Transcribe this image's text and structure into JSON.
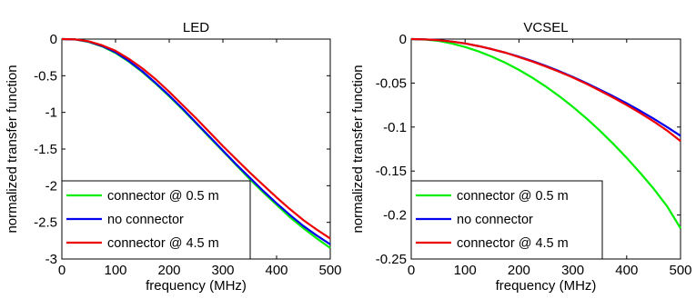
{
  "chart_data": [
    {
      "type": "line",
      "title": "LED",
      "xlabel": "frequency (MHz)",
      "ylabel": "normalized transfer function",
      "xlim": [
        0,
        500
      ],
      "ylim": [
        -3,
        0
      ],
      "xticks": [
        0,
        100,
        200,
        300,
        400,
        500
      ],
      "xtick_labels": [
        "0",
        "100",
        "200",
        "300",
        "400",
        "500"
      ],
      "yticks": [
        0,
        -0.5,
        -1,
        -1.5,
        -2,
        -2.5,
        -3
      ],
      "ytick_labels": [
        "0",
        "-0.5",
        "-1",
        "-1.5",
        "-2",
        "-2.5",
        "-3"
      ],
      "grid": false,
      "legend_position": "bottom-left",
      "x": [
        0,
        25,
        50,
        75,
        100,
        125,
        150,
        175,
        200,
        225,
        250,
        275,
        300,
        325,
        350,
        375,
        400,
        425,
        450,
        475,
        500
      ],
      "series": [
        {
          "name": "connector @ 0.5 m",
          "color": "#00ee00",
          "values": [
            0,
            -0.005,
            -0.04,
            -0.1,
            -0.19,
            -0.31,
            -0.45,
            -0.61,
            -0.78,
            -0.96,
            -1.15,
            -1.34,
            -1.53,
            -1.72,
            -1.91,
            -2.09,
            -2.26,
            -2.43,
            -2.58,
            -2.72,
            -2.85
          ]
        },
        {
          "name": "no connector",
          "color": "#0000ee",
          "values": [
            0,
            -0.005,
            -0.035,
            -0.095,
            -0.18,
            -0.3,
            -0.44,
            -0.6,
            -0.77,
            -0.95,
            -1.14,
            -1.33,
            -1.52,
            -1.71,
            -1.89,
            -2.07,
            -2.24,
            -2.4,
            -2.55,
            -2.68,
            -2.8
          ]
        },
        {
          "name": "connector @ 4.5 m",
          "color": "#ee0000",
          "values": [
            0,
            -0.004,
            -0.03,
            -0.085,
            -0.16,
            -0.27,
            -0.4,
            -0.55,
            -0.72,
            -0.9,
            -1.08,
            -1.27,
            -1.46,
            -1.64,
            -1.82,
            -1.99,
            -2.16,
            -2.32,
            -2.47,
            -2.6,
            -2.72
          ]
        }
      ]
    },
    {
      "type": "line",
      "title": "VCSEL",
      "xlabel": "frequency (MHz)",
      "ylabel": "normalized transfer function",
      "xlim": [
        0,
        500
      ],
      "ylim": [
        -0.25,
        0
      ],
      "xticks": [
        0,
        100,
        200,
        300,
        400,
        500
      ],
      "xtick_labels": [
        "0",
        "100",
        "200",
        "300",
        "400",
        "500"
      ],
      "yticks": [
        0,
        -0.05,
        -0.1,
        -0.15,
        -0.2,
        -0.25
      ],
      "ytick_labels": [
        "0",
        "-0.05",
        "-0.1",
        "-0.15",
        "-0.2",
        "-0.25"
      ],
      "grid": false,
      "legend_position": "bottom-left",
      "x": [
        0,
        25,
        50,
        75,
        100,
        125,
        150,
        175,
        200,
        225,
        250,
        275,
        300,
        325,
        350,
        375,
        400,
        425,
        450,
        475,
        500
      ],
      "series": [
        {
          "name": "connector @ 0.5 m",
          "color": "#00ee00",
          "values": [
            0,
            -0.0005,
            -0.002,
            -0.005,
            -0.009,
            -0.014,
            -0.02,
            -0.027,
            -0.035,
            -0.044,
            -0.054,
            -0.065,
            -0.077,
            -0.09,
            -0.104,
            -0.119,
            -0.135,
            -0.152,
            -0.17,
            -0.19,
            -0.215
          ]
        },
        {
          "name": "no connector",
          "color": "#0000ee",
          "values": [
            0,
            -0.0003,
            -0.0012,
            -0.0028,
            -0.005,
            -0.008,
            -0.0115,
            -0.0155,
            -0.02,
            -0.025,
            -0.0305,
            -0.0365,
            -0.043,
            -0.05,
            -0.0575,
            -0.065,
            -0.073,
            -0.0815,
            -0.0905,
            -0.1,
            -0.11
          ]
        },
        {
          "name": "connector @ 4.5 m",
          "color": "#ee0000",
          "values": [
            0,
            -0.0003,
            -0.0012,
            -0.0028,
            -0.005,
            -0.008,
            -0.0115,
            -0.0155,
            -0.0205,
            -0.0255,
            -0.0312,
            -0.0372,
            -0.0437,
            -0.0508,
            -0.0585,
            -0.0665,
            -0.075,
            -0.084,
            -0.0935,
            -0.104,
            -0.116
          ]
        }
      ]
    }
  ]
}
